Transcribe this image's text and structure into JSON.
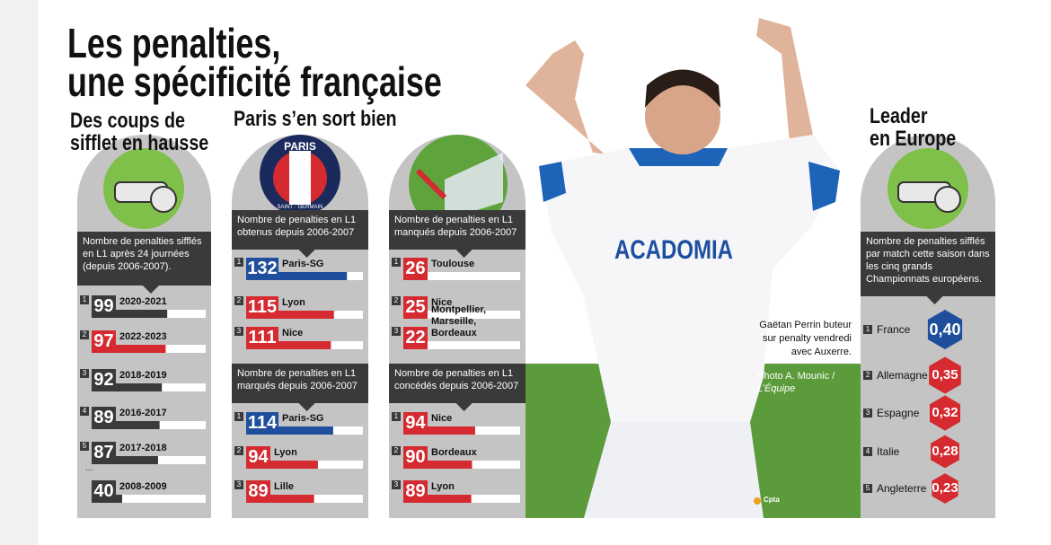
{
  "title": {
    "lines": [
      "Les penalties,",
      "une spécificité française"
    ]
  },
  "sections": [
    {
      "heading": [
        "Des coups de",
        "sifflet en hausse"
      ],
      "panels": [
        {
          "caption": "Nombre de penalties sifflés en L1 après 24 journées (depuis 2006-2007).",
          "ellipsis": "...",
          "rows": [
            {
              "rank": 1,
              "value": 99,
              "label": "2020-2021",
              "color": "#3a3a3a"
            },
            {
              "rank": 2,
              "value": 97,
              "label": "2022-2023",
              "color": "#d42a30"
            },
            {
              "rank": 3,
              "value": 92,
              "label": "2018-2019",
              "color": "#3a3a3a"
            },
            {
              "rank": 4,
              "value": 89,
              "label": "2016-2017",
              "color": "#3a3a3a"
            },
            {
              "rank": 5,
              "value": 87,
              "label": "2017-2018",
              "color": "#3a3a3a"
            },
            {
              "rank": null,
              "value": 40,
              "label": "2008-2009",
              "color": "#3a3a3a"
            }
          ]
        }
      ]
    },
    {
      "heading": [
        "Paris s’en sort bien"
      ],
      "panels": [
        {
          "caption": "Nombre de penalties en L1 obtenus depuis 2006-2007",
          "rows": [
            {
              "rank": 1,
              "value": 132,
              "label": "Paris-SG",
              "color": "#1f4e9c"
            },
            {
              "rank": 2,
              "value": 115,
              "label": "Lyon",
              "color": "#d42a30"
            },
            {
              "rank": 3,
              "value": 111,
              "label": "Nice",
              "color": "#d42a30"
            }
          ]
        },
        {
          "caption": "Nombre de penalties en L1 manqués depuis 2006-2007",
          "rows": [
            {
              "rank": 1,
              "value": 26,
              "label": "Toulouse",
              "color": "#d42a30"
            },
            {
              "rank": 2,
              "value": 25,
              "label": "Nice",
              "color": "#d42a30"
            },
            {
              "rank": 3,
              "value": 22,
              "label": "Montpellier, Marseille, Bordeaux",
              "color": "#d42a30"
            }
          ]
        },
        {
          "caption": "Nombre de penalties en L1 marqués depuis 2006-2007",
          "rows": [
            {
              "rank": 1,
              "value": 114,
              "label": "Paris-SG",
              "color": "#1f4e9c"
            },
            {
              "rank": 2,
              "value": 94,
              "label": "Lyon",
              "color": "#d42a30"
            },
            {
              "rank": 3,
              "value": 89,
              "label": "Lille",
              "color": "#d42a30"
            }
          ]
        },
        {
          "caption": "Nombre de penalties en L1 concédés depuis 2006-2007",
          "rows": [
            {
              "rank": 1,
              "value": 94,
              "label": "Nice",
              "color": "#d42a30"
            },
            {
              "rank": 2,
              "value": 90,
              "label": "Bordeaux",
              "color": "#d42a30"
            },
            {
              "rank": 3,
              "value": 89,
              "label": "Lyon",
              "color": "#d42a30"
            }
          ]
        }
      ]
    },
    {
      "heading": [
        "Leader",
        "en Europe"
      ],
      "panels": [
        {
          "caption": "Nombre de penalties sifflés par match cette saison dans les cinq grands Championnats européens.",
          "rows": [
            {
              "rank": 1,
              "label": "France",
              "value": 0.4,
              "value_label": "0,40",
              "color": "#1f4e9c"
            },
            {
              "rank": 2,
              "label": "Allemagne",
              "value": 0.35,
              "value_label": "0,35",
              "color": "#d42a30"
            },
            {
              "rank": 3,
              "label": "Espagne",
              "value": 0.32,
              "value_label": "0,32",
              "color": "#d42a30"
            },
            {
              "rank": 4,
              "label": "Italie",
              "value": 0.28,
              "value_label": "0,28",
              "color": "#d42a30"
            },
            {
              "rank": 5,
              "label": "Angleterre",
              "value": 0.23,
              "value_label": "0,23",
              "color": "#d42a30"
            }
          ]
        }
      ]
    }
  ],
  "logo": {
    "top": "PARIS",
    "bottom": "SAINT · GERMAIN"
  },
  "photo": {
    "shirt_text": "ACADOMIA",
    "caption": "Gaëtan Perrin buteur sur penalty vendredi avec Auxerre.",
    "credit": "Photo A. Mounic /",
    "credit_source": "L’Équipe",
    "agency": "Cpta"
  }
}
